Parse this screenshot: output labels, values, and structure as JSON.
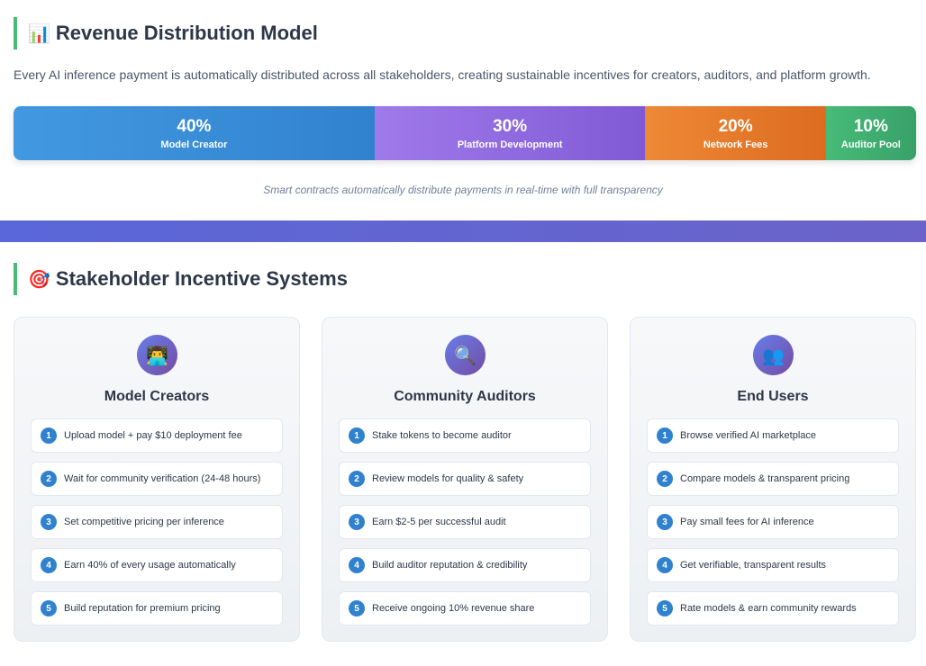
{
  "revenue": {
    "title": "Revenue Distribution Model",
    "icon": "bar-chart-icon",
    "emoji": "📊",
    "description": "Every AI inference payment is automatically distributed across all stakeholders, creating sustainable incentives for creators, auditors, and platform growth.",
    "segments": [
      {
        "percent": "40%",
        "label": "Model Creator",
        "share": 40,
        "color": "#3b8ee0"
      },
      {
        "percent": "30%",
        "label": "Platform Development",
        "share": 30,
        "color": "#8a67dd"
      },
      {
        "percent": "20%",
        "label": "Network Fees",
        "share": 20,
        "color": "#e67e2e"
      },
      {
        "percent": "10%",
        "label": "Auditor Pool",
        "share": 10,
        "color": "#40a96d"
      }
    ],
    "note": "Smart contracts automatically distribute payments in real-time with full transparency"
  },
  "incentives": {
    "title": "Stakeholder Incentive Systems",
    "icon": "target-icon",
    "emoji": "🎯",
    "cards": [
      {
        "title": "Model Creators",
        "icon": "technologist-icon",
        "emoji": "👨‍💻",
        "steps": [
          {
            "num": "1",
            "text": "Upload model + pay $10 deployment fee"
          },
          {
            "num": "2",
            "text": "Wait for community verification (24-48 hours)"
          },
          {
            "num": "3",
            "text": "Set competitive pricing per inference"
          },
          {
            "num": "4",
            "text": "Earn 40% of every usage automatically"
          },
          {
            "num": "5",
            "text": "Build reputation for premium pricing"
          }
        ]
      },
      {
        "title": "Community Auditors",
        "icon": "magnifier-icon",
        "emoji": "🔍",
        "steps": [
          {
            "num": "1",
            "text": "Stake tokens to become auditor"
          },
          {
            "num": "2",
            "text": "Review models for quality & safety"
          },
          {
            "num": "3",
            "text": "Earn $2-5 per successful audit"
          },
          {
            "num": "4",
            "text": "Build auditor reputation & credibility"
          },
          {
            "num": "5",
            "text": "Receive ongoing 10% revenue share"
          }
        ]
      },
      {
        "title": "End Users",
        "icon": "users-icon",
        "emoji": "👥",
        "steps": [
          {
            "num": "1",
            "text": "Browse verified AI marketplace"
          },
          {
            "num": "2",
            "text": "Compare models & transparent pricing"
          },
          {
            "num": "3",
            "text": "Pay small fees for AI inference"
          },
          {
            "num": "4",
            "text": "Get verifiable, transparent results"
          },
          {
            "num": "5",
            "text": "Rate models & earn community rewards"
          }
        ]
      }
    ]
  }
}
